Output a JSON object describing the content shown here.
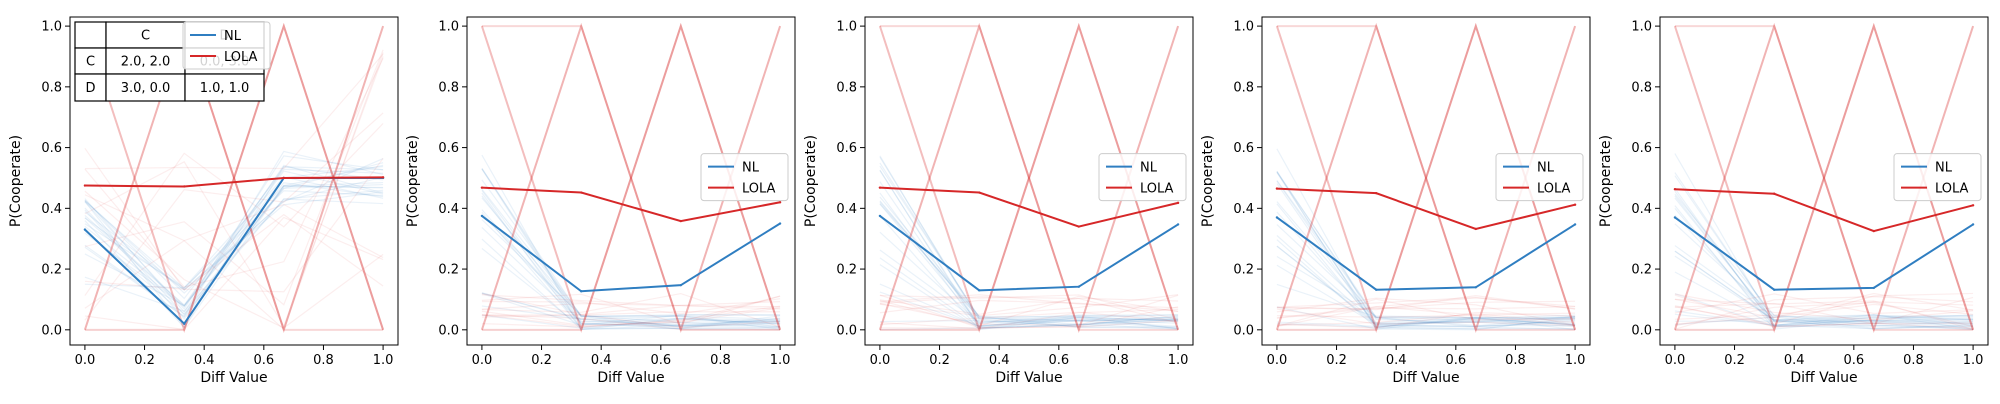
{
  "figure": {
    "background": "#ffffff"
  },
  "colors": {
    "nl": "#2f7ec1",
    "lola": "#d62728",
    "frame": "#000000"
  },
  "payoff_table": {
    "header": [
      "",
      "C",
      "D"
    ],
    "rows": [
      [
        "C",
        "2.0, 2.0",
        "0.0, 3.0"
      ],
      [
        "D",
        "3.0, 0.0",
        "1.0, 1.0"
      ]
    ]
  },
  "chart_data": [
    {
      "type": "line",
      "xlabel": "Diff Value",
      "ylabel": "P(Cooperate)",
      "xlim": [
        -0.05,
        1.05
      ],
      "ylim": [
        -0.05,
        1.03
      ],
      "xticks": [
        "0.0",
        "0.2",
        "0.4",
        "0.6",
        "0.8",
        "1.0"
      ],
      "yticks": [
        "0.0",
        "0.2",
        "0.4",
        "0.6",
        "0.8",
        "1.0"
      ],
      "legend": "top-left",
      "show_table": true,
      "x": [
        0.0,
        0.333,
        0.667,
        1.0
      ],
      "series": [
        {
          "name": "NL",
          "values": [
            0.33,
            0.02,
            0.5,
            0.5
          ]
        },
        {
          "name": "LOLA",
          "values": [
            0.475,
            0.472,
            0.5,
            0.502
          ]
        }
      ]
    },
    {
      "type": "line",
      "xlabel": "Diff Value",
      "ylabel": "P(Cooperate)",
      "xlim": [
        -0.05,
        1.05
      ],
      "ylim": [
        -0.05,
        1.03
      ],
      "xticks": [
        "0.0",
        "0.2",
        "0.4",
        "0.6",
        "0.8",
        "1.0"
      ],
      "yticks": [
        "0.0",
        "0.2",
        "0.4",
        "0.6",
        "0.8",
        "1.0"
      ],
      "legend": "center-right",
      "show_table": false,
      "x": [
        0.0,
        0.333,
        0.667,
        1.0
      ],
      "series": [
        {
          "name": "NL",
          "values": [
            0.375,
            0.127,
            0.147,
            0.35
          ]
        },
        {
          "name": "LOLA",
          "values": [
            0.468,
            0.452,
            0.358,
            0.42
          ]
        }
      ]
    },
    {
      "type": "line",
      "xlabel": "Diff Value",
      "ylabel": "P(Cooperate)",
      "xlim": [
        -0.05,
        1.05
      ],
      "ylim": [
        -0.05,
        1.03
      ],
      "xticks": [
        "0.0",
        "0.2",
        "0.4",
        "0.6",
        "0.8",
        "1.0"
      ],
      "yticks": [
        "0.0",
        "0.2",
        "0.4",
        "0.6",
        "0.8",
        "1.0"
      ],
      "legend": "center-right",
      "show_table": false,
      "x": [
        0.0,
        0.333,
        0.667,
        1.0
      ],
      "series": [
        {
          "name": "NL",
          "values": [
            0.375,
            0.13,
            0.142,
            0.347
          ]
        },
        {
          "name": "LOLA",
          "values": [
            0.468,
            0.452,
            0.34,
            0.418
          ]
        }
      ]
    },
    {
      "type": "line",
      "xlabel": "Diff Value",
      "ylabel": "P(Cooperate)",
      "xlim": [
        -0.05,
        1.05
      ],
      "ylim": [
        -0.05,
        1.03
      ],
      "xticks": [
        "0.0",
        "0.2",
        "0.4",
        "0.6",
        "0.8",
        "1.0"
      ],
      "yticks": [
        "0.0",
        "0.2",
        "0.4",
        "0.6",
        "0.8",
        "1.0"
      ],
      "legend": "center-right",
      "show_table": false,
      "x": [
        0.0,
        0.333,
        0.667,
        1.0
      ],
      "series": [
        {
          "name": "NL",
          "values": [
            0.37,
            0.132,
            0.14,
            0.347
          ]
        },
        {
          "name": "LOLA",
          "values": [
            0.465,
            0.45,
            0.332,
            0.412
          ]
        }
      ]
    },
    {
      "type": "line",
      "xlabel": "Diff Value",
      "ylabel": "P(Cooperate)",
      "xlim": [
        -0.05,
        1.05
      ],
      "ylim": [
        -0.05,
        1.03
      ],
      "xticks": [
        "0.0",
        "0.2",
        "0.4",
        "0.6",
        "0.8",
        "1.0"
      ],
      "yticks": [
        "0.0",
        "0.2",
        "0.4",
        "0.6",
        "0.8",
        "1.0"
      ],
      "legend": "center-right",
      "show_table": false,
      "x": [
        0.0,
        0.333,
        0.667,
        1.0
      ],
      "series": [
        {
          "name": "NL",
          "values": [
            0.37,
            0.132,
            0.138,
            0.347
          ]
        },
        {
          "name": "LOLA",
          "values": [
            0.463,
            0.448,
            0.325,
            0.41
          ]
        }
      ]
    }
  ]
}
